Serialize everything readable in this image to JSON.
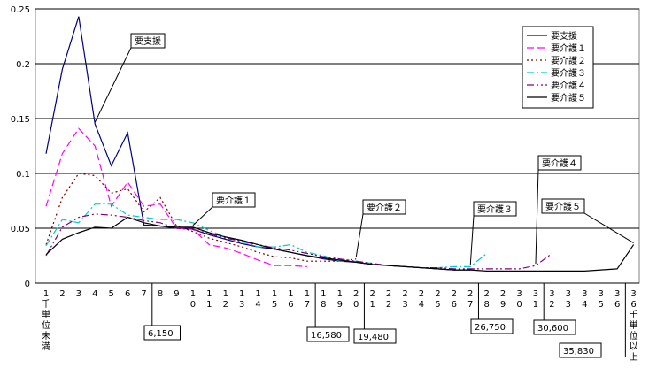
{
  "chart_data": {
    "type": "line",
    "ylim": [
      0,
      0.25
    ],
    "yticks": [
      "0",
      "0.05",
      "0.1",
      "0.15",
      "0.2",
      "0.25"
    ],
    "grid": "horizontal",
    "legend_position": "top-right",
    "x_labels": [
      "1\n千\n単\n位\n未\n満",
      "2",
      "3",
      "4",
      "5",
      "6",
      "7",
      "8",
      "9",
      "1\n0",
      "1\n1",
      "1\n2",
      "1\n3",
      "1\n4",
      "1\n5",
      "1\n6",
      "1\n7",
      "1\n8",
      "1\n9",
      "2\n0",
      "2\n1",
      "2\n2",
      "2\n3",
      "2\n4",
      "2\n5",
      "2\n6",
      "2\n7",
      "2\n8",
      "2\n9",
      "3\n0",
      "3\n1",
      "3\n2",
      "3\n3",
      "3\n4",
      "3\n5",
      "3\n6",
      "3\n6\n千\n単\n位\n以\n上"
    ],
    "series": [
      {
        "name": "要支援",
        "color": "#000080",
        "dash": "none",
        "values": [
          0.118,
          0.195,
          0.243,
          0.145,
          0.107,
          0.137,
          0.053,
          0.052,
          0.05,
          0.049,
          0.044,
          0.04,
          0.036,
          0.033,
          0.031,
          0.028,
          0.025,
          0.022,
          0.02,
          0.019,
          0.017,
          0.016,
          0.015,
          0.014,
          0.013,
          0.012,
          0.012,
          null,
          null,
          null,
          null,
          null,
          null,
          null,
          null,
          null,
          null
        ]
      },
      {
        "name": "要介護１",
        "color": "#ff00ff",
        "dash": "8,4",
        "values": [
          0.07,
          0.118,
          0.141,
          0.125,
          0.07,
          0.092,
          0.07,
          0.072,
          0.05,
          0.049,
          0.035,
          0.032,
          0.027,
          0.021,
          0.016,
          0.016,
          0.015,
          null,
          null,
          null,
          null,
          null,
          null,
          null,
          null,
          null,
          null,
          null,
          null,
          null,
          null,
          null,
          null,
          null,
          null,
          null,
          null
        ]
      },
      {
        "name": "要介護２",
        "color": "#800000",
        "dash": "2,3",
        "values": [
          0.035,
          0.078,
          0.1,
          0.098,
          0.082,
          0.086,
          0.065,
          0.078,
          0.052,
          0.047,
          0.041,
          0.037,
          0.033,
          0.028,
          0.024,
          0.023,
          0.02,
          0.02,
          0.02,
          0.022,
          null,
          null,
          null,
          null,
          null,
          null,
          null,
          null,
          null,
          null,
          null,
          null,
          null,
          null,
          null,
          null,
          null
        ]
      },
      {
        "name": "要介護３",
        "color": "#00cccc",
        "dash": "8,3,2,3",
        "values": [
          0.034,
          0.058,
          0.055,
          0.072,
          0.072,
          0.062,
          0.06,
          0.058,
          0.058,
          0.055,
          0.048,
          0.042,
          0.038,
          0.033,
          0.033,
          0.035,
          0.028,
          0.025,
          0.02,
          0.02,
          0.018,
          0.016,
          0.015,
          0.014,
          0.014,
          0.015,
          0.015,
          0.027,
          null,
          null,
          null,
          null,
          null,
          null,
          null,
          null,
          null
        ]
      },
      {
        "name": "要介護４",
        "color": "#800080",
        "dash": "8,3,2,3,2,3",
        "values": [
          0.025,
          0.051,
          0.06,
          0.063,
          0.062,
          0.06,
          0.057,
          0.055,
          0.05,
          0.049,
          0.045,
          0.041,
          0.038,
          0.035,
          0.032,
          0.03,
          0.027,
          0.024,
          0.022,
          0.02,
          0.018,
          0.016,
          0.015,
          0.014,
          0.014,
          0.013,
          0.013,
          0.013,
          0.013,
          0.013,
          0.016,
          0.027,
          null,
          null,
          null,
          null,
          null
        ]
      },
      {
        "name": "要介護５",
        "color": "#000000",
        "dash": "none",
        "values": [
          0.026,
          0.04,
          0.046,
          0.051,
          0.05,
          0.06,
          0.055,
          0.052,
          0.051,
          0.051,
          0.046,
          0.042,
          0.039,
          0.035,
          0.031,
          0.028,
          0.025,
          0.023,
          0.021,
          0.019,
          0.017,
          0.016,
          0.015,
          0.014,
          0.013,
          0.012,
          0.012,
          0.011,
          0.011,
          0.011,
          0.011,
          0.011,
          0.011,
          0.011,
          0.012,
          0.013,
          0.035
        ]
      }
    ],
    "annotations": [
      {
        "text": "要支援",
        "series": 0,
        "index": 3
      },
      {
        "text": "要介護１",
        "series": 5,
        "index": 9
      },
      {
        "text": "要介護２",
        "series": 2,
        "index": 19
      },
      {
        "text": "要介護３",
        "series": 3,
        "index": 26
      },
      {
        "text": "要介護４",
        "series": 4,
        "index": 30
      },
      {
        "text": "要介護５",
        "series": 5,
        "index": 36
      }
    ],
    "value_labels": [
      {
        "text": "6,150",
        "index": 6
      },
      {
        "text": "16,580",
        "index": 16
      },
      {
        "text": "19,480",
        "index": 19
      },
      {
        "text": "26,750",
        "index": 26
      },
      {
        "text": "30,600",
        "index": 30
      },
      {
        "text": "35,830",
        "index": 35
      }
    ]
  }
}
